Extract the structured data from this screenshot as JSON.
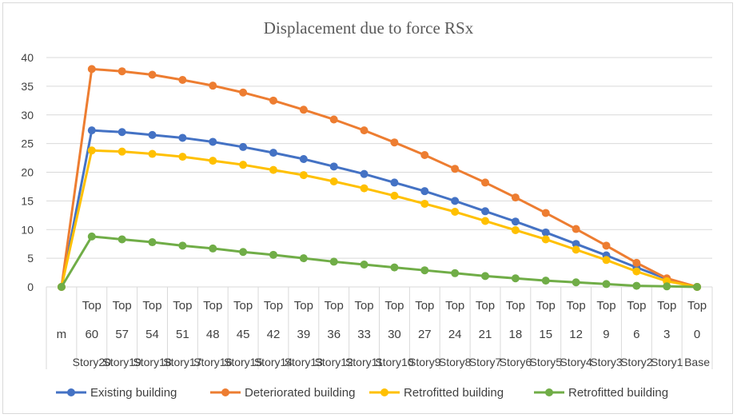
{
  "chart_data": {
    "type": "line",
    "title": "Displacement due to force RSx",
    "xlabel": "",
    "ylabel": "",
    "ylim": [
      0,
      40
    ],
    "yticks": [
      0,
      5,
      10,
      15,
      20,
      25,
      30,
      35,
      40
    ],
    "grid": true,
    "legend_position": "bottom",
    "categories": [
      {
        "top": "",
        "mid": "m",
        "bottom": ""
      },
      {
        "top": "Top",
        "mid": "60",
        "bottom": "Story20"
      },
      {
        "top": "Top",
        "mid": "57",
        "bottom": "Story19"
      },
      {
        "top": "Top",
        "mid": "54",
        "bottom": "Story18"
      },
      {
        "top": "Top",
        "mid": "51",
        "bottom": "Story17"
      },
      {
        "top": "Top",
        "mid": "48",
        "bottom": "Story16"
      },
      {
        "top": "Top",
        "mid": "45",
        "bottom": "Story15"
      },
      {
        "top": "Top",
        "mid": "42",
        "bottom": "Story14"
      },
      {
        "top": "Top",
        "mid": "39",
        "bottom": "Story13"
      },
      {
        "top": "Top",
        "mid": "36",
        "bottom": "Story12"
      },
      {
        "top": "Top",
        "mid": "33",
        "bottom": "Story11"
      },
      {
        "top": "Top",
        "mid": "30",
        "bottom": "Story10"
      },
      {
        "top": "Top",
        "mid": "27",
        "bottom": "Story9"
      },
      {
        "top": "Top",
        "mid": "24",
        "bottom": "Story8"
      },
      {
        "top": "Top",
        "mid": "21",
        "bottom": "Story7"
      },
      {
        "top": "Top",
        "mid": "18",
        "bottom": "Story6"
      },
      {
        "top": "Top",
        "mid": "15",
        "bottom": "Story5"
      },
      {
        "top": "Top",
        "mid": "12",
        "bottom": "Story4"
      },
      {
        "top": "Top",
        "mid": "9",
        "bottom": "Story3"
      },
      {
        "top": "Top",
        "mid": "6",
        "bottom": "Story2"
      },
      {
        "top": "Top",
        "mid": "3",
        "bottom": "Story1"
      },
      {
        "top": "Top",
        "mid": "0",
        "bottom": "Base"
      }
    ],
    "series": [
      {
        "name": "Existing building",
        "color": "#4472c4",
        "values": [
          0,
          27.3,
          27.0,
          26.5,
          26.0,
          25.3,
          24.4,
          23.4,
          22.3,
          21.0,
          19.7,
          18.2,
          16.7,
          15.0,
          13.2,
          11.4,
          9.5,
          7.5,
          5.5,
          3.4,
          1.4,
          0
        ]
      },
      {
        "name": "Deteriorated building",
        "color": "#ed7d31",
        "values": [
          0,
          38.0,
          37.6,
          37.0,
          36.1,
          35.1,
          33.9,
          32.5,
          30.9,
          29.2,
          27.3,
          25.2,
          23.0,
          20.6,
          18.2,
          15.6,
          12.9,
          10.1,
          7.2,
          4.2,
          1.5,
          0
        ]
      },
      {
        "name": "Retrofitted building",
        "color": "#ffc000",
        "values": [
          0,
          23.8,
          23.6,
          23.2,
          22.7,
          22.0,
          21.3,
          20.4,
          19.5,
          18.4,
          17.2,
          15.9,
          14.5,
          13.1,
          11.5,
          9.9,
          8.3,
          6.5,
          4.7,
          2.7,
          1.0,
          0
        ]
      },
      {
        "name": "Retrofitted building",
        "color": "#70ad47",
        "values": [
          0,
          8.8,
          8.3,
          7.8,
          7.2,
          6.7,
          6.1,
          5.6,
          5.0,
          4.4,
          3.9,
          3.4,
          2.9,
          2.4,
          1.9,
          1.5,
          1.1,
          0.8,
          0.5,
          0.2,
          0.1,
          0
        ]
      }
    ]
  }
}
